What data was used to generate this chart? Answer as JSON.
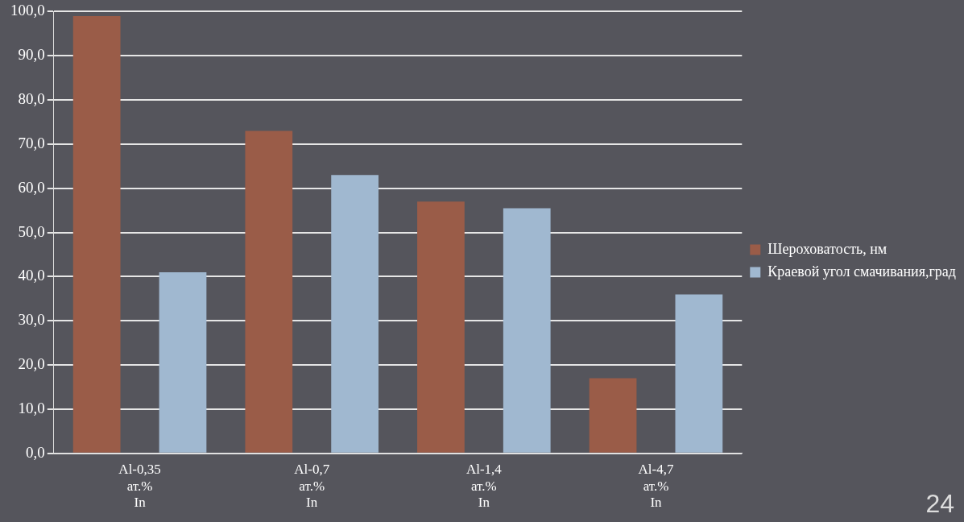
{
  "chart_data": {
    "type": "bar",
    "categories": [
      "Al-0,35 ат.% In",
      "Al-0,7 ат.% In",
      "Al-1,4 ат.% In",
      "Al-4,7 ат.% In"
    ],
    "series": [
      {
        "name": "Шероховатость, нм",
        "color": "#9a5c48",
        "values": [
          99,
          73,
          57,
          17
        ]
      },
      {
        "name": "Краевой угол смачивания,град",
        "color": "#a0b8d0",
        "values": [
          41,
          63,
          55.5,
          36
        ]
      }
    ],
    "ylim": [
      0,
      100
    ],
    "yticks": [
      {
        "value": 0,
        "label": "0,0"
      },
      {
        "value": 10,
        "label": "10,0"
      },
      {
        "value": 20,
        "label": "20,0"
      },
      {
        "value": 30,
        "label": "30,0"
      },
      {
        "value": 40,
        "label": "40,0"
      },
      {
        "value": 50,
        "label": "50,0"
      },
      {
        "value": 60,
        "label": "60,0"
      },
      {
        "value": 70,
        "label": "70,0"
      },
      {
        "value": 80,
        "label": "80,0"
      },
      {
        "value": 90,
        "label": "90,0"
      },
      {
        "value": 100,
        "label": "100,0"
      }
    ],
    "grid": "y",
    "legend": "right",
    "annotations": [
      "24"
    ]
  }
}
